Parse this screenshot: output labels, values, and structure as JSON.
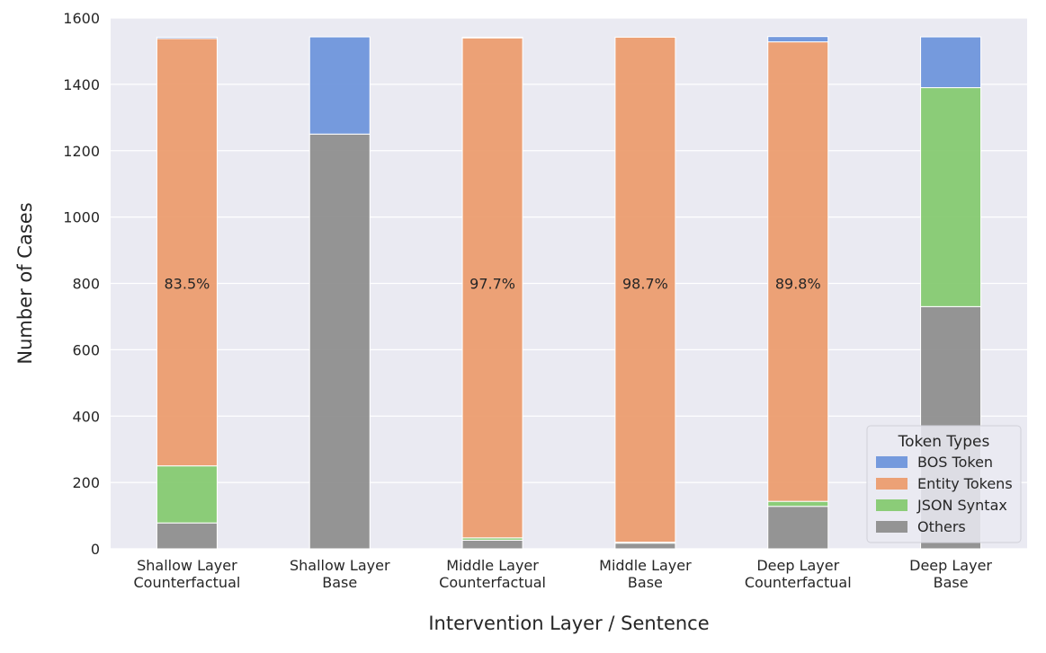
{
  "chart_data": {
    "type": "bar",
    "stacked": true,
    "title": "",
    "xlabel": "Intervention Layer / Sentence",
    "ylabel": "Number of Cases",
    "ylim": [
      0,
      1600
    ],
    "yticks": [
      0,
      200,
      400,
      600,
      800,
      1000,
      1200,
      1400,
      1600
    ],
    "grid": true,
    "categories": [
      [
        "Shallow Layer",
        "Counterfactual"
      ],
      [
        "Shallow Layer",
        "Base"
      ],
      [
        "Middle Layer",
        "Counterfactual"
      ],
      [
        "Middle Layer",
        "Base"
      ],
      [
        "Deep Layer",
        "Counterfactual"
      ],
      [
        "Deep Layer",
        "Base"
      ]
    ],
    "series": [
      {
        "name": "Others",
        "color": "#8c8c8c",
        "values": [
          78,
          1250,
          26,
          17,
          128,
          730
        ]
      },
      {
        "name": "JSON Syntax",
        "color": "#82c96e",
        "values": [
          172,
          0,
          7,
          3,
          15,
          660
        ]
      },
      {
        "name": "Entity Tokens",
        "color": "#eb9a6b",
        "values": [
          1288,
          0,
          1507,
          1522,
          1385,
          0
        ]
      },
      {
        "name": "BOS Token",
        "color": "#6a93db",
        "values": [
          4,
          293,
          2,
          0,
          16,
          153
        ]
      }
    ],
    "legend": {
      "title": "Token Types",
      "position": "lower-right",
      "order": [
        "BOS Token",
        "Entity Tokens",
        "JSON Syntax",
        "Others"
      ]
    },
    "annotations": [
      {
        "category_index": 0,
        "series": "Entity Tokens",
        "text": "83.5%"
      },
      {
        "category_index": 2,
        "series": "Entity Tokens",
        "text": "97.7%"
      },
      {
        "category_index": 3,
        "series": "Entity Tokens",
        "text": "98.7%"
      },
      {
        "category_index": 4,
        "series": "Entity Tokens",
        "text": "89.8%"
      }
    ]
  }
}
